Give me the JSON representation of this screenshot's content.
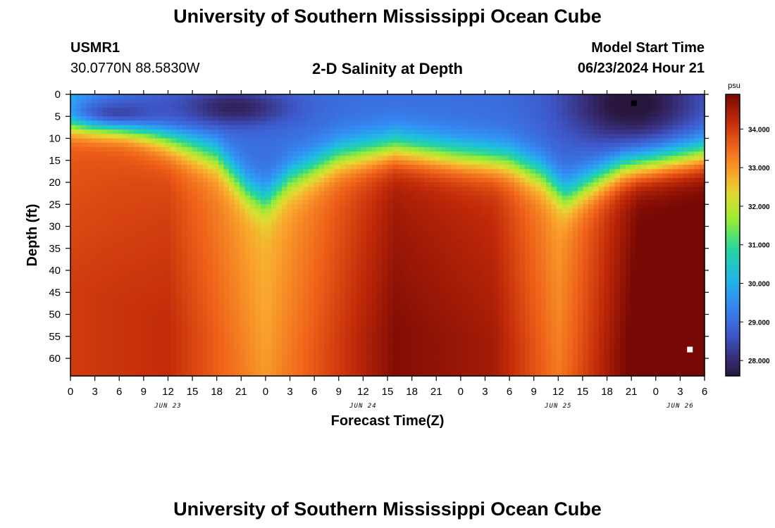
{
  "page": {
    "title_top": "University of Southern Mississippi Ocean Cube",
    "title_bottom": "University of Southern Mississippi Ocean Cube",
    "station": "USMR1",
    "coords": "30.0770N  88.5830W",
    "plot_title": "2-D Salinity at Depth",
    "model_label": "Model Start Time",
    "model_time": "06/23/2024 Hour 21"
  },
  "chart_data": {
    "type": "heatmap",
    "title": "2-D Salinity at Depth",
    "xlabel": "Forecast Time(Z)",
    "ylabel": "Depth (ft)",
    "x_ticks": [
      "0",
      "3",
      "6",
      "9",
      "12",
      "15",
      "18",
      "21",
      "0",
      "3",
      "6",
      "9",
      "12",
      "15",
      "18",
      "21",
      "0",
      "3",
      "6",
      "9",
      "12",
      "15",
      "18",
      "21",
      "0",
      "3",
      "6"
    ],
    "x_range_hours": [
      0,
      78
    ],
    "date_labels": [
      {
        "text": "JUN 23",
        "hour": 12
      },
      {
        "text": "JUN 24",
        "hour": 36
      },
      {
        "text": "JUN 25",
        "hour": 60
      },
      {
        "text": "JUN 26",
        "hour": 75
      }
    ],
    "y_ticks": [
      0,
      5,
      10,
      15,
      20,
      25,
      30,
      35,
      40,
      45,
      50,
      55,
      60
    ],
    "ylim": [
      0,
      64
    ],
    "colorbar": {
      "unit": "psu",
      "ticks": [
        "28.000",
        "29.000",
        "30.000",
        "31.000",
        "32.000",
        "33.000",
        "34.000"
      ],
      "min": 27.6,
      "max": 34.9
    },
    "halocline_depth_ft": [
      {
        "hour": 0,
        "depth": 4
      },
      {
        "hour": 6,
        "depth": 7
      },
      {
        "hour": 12,
        "depth": 12
      },
      {
        "hour": 18,
        "depth": 16
      },
      {
        "hour": 22,
        "depth": 24
      },
      {
        "hour": 24,
        "depth": 26
      },
      {
        "hour": 27,
        "depth": 21
      },
      {
        "hour": 33,
        "depth": 16
      },
      {
        "hour": 40,
        "depth": 14
      },
      {
        "hour": 48,
        "depth": 16
      },
      {
        "hour": 54,
        "depth": 17
      },
      {
        "hour": 58,
        "depth": 20
      },
      {
        "hour": 61,
        "depth": 25
      },
      {
        "hour": 64,
        "depth": 22
      },
      {
        "hour": 68,
        "depth": 18
      },
      {
        "hour": 74,
        "depth": 16
      },
      {
        "hour": 78,
        "depth": 15
      }
    ],
    "surface_salinity_psu": 29.0,
    "deep_salinity_psu": [
      {
        "hour": 0,
        "value": 33.6
      },
      {
        "hour": 12,
        "value": 33.8
      },
      {
        "hour": 24,
        "value": 32.6
      },
      {
        "hour": 40,
        "value": 34.4
      },
      {
        "hour": 52,
        "value": 34.1
      },
      {
        "hour": 60,
        "value": 32.9
      },
      {
        "hour": 70,
        "value": 34.8
      },
      {
        "hour": 78,
        "value": 34.9
      }
    ],
    "fresh_pockets": [
      {
        "hour": 20,
        "depth": 3,
        "value": 27.8,
        "sigma_h": 5,
        "sigma_d": 3
      },
      {
        "hour": 69,
        "depth": 2,
        "value": 27.5,
        "sigma_h": 6,
        "sigma_d": 7
      },
      {
        "hour": 6,
        "depth": 4,
        "value": 28.4,
        "sigma_h": 6,
        "sigma_d": 3
      }
    ],
    "markers": [
      {
        "hour": 69.3,
        "depth": 2,
        "color": "#000000"
      },
      {
        "hour": 76.2,
        "depth": 58,
        "color": "#ffffff"
      }
    ]
  }
}
